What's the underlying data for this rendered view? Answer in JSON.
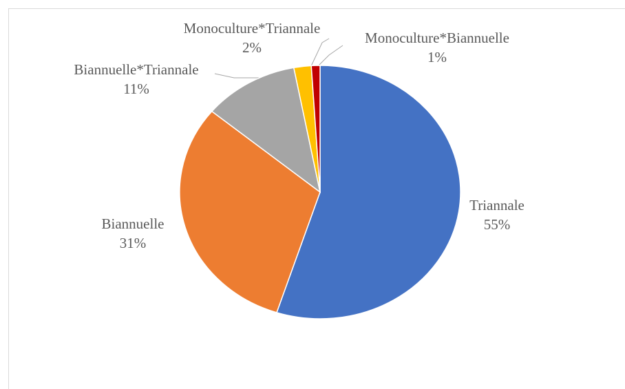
{
  "chart_data": {
    "type": "pie",
    "categories": [
      "Triannale",
      "Biannuelle",
      "Biannuelle*Triannale",
      "Monoculture*Triannale",
      "Monoculture*Biannuelle"
    ],
    "values": [
      55,
      31,
      11,
      2,
      1
    ],
    "value_labels": [
      "55%",
      "31%",
      "11%",
      "2%",
      "1%"
    ],
    "colors": [
      "#4472c4",
      "#ed7d31",
      "#a5a5a5",
      "#ffc000",
      "#c00000"
    ]
  }
}
